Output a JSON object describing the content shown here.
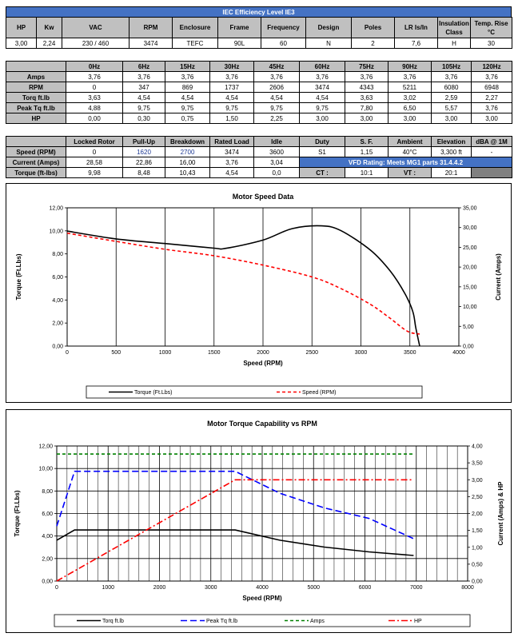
{
  "title": "IEC Efficiency Level IE3",
  "summary": {
    "headers": [
      "HP",
      "Kw",
      "VAC",
      "RPM",
      "Enclosure",
      "Frame",
      "Frequency",
      "Design",
      "Poles",
      "LR Is/In",
      "Insulation Class",
      "Temp. Rise °C"
    ],
    "values": [
      "3,00",
      "2,24",
      "230 / 460",
      "3474",
      "TEFC",
      "90L",
      "60",
      "N",
      "2",
      "7,6",
      "H",
      "30"
    ]
  },
  "freq": {
    "headers": [
      "0Hz",
      "6Hz",
      "15Hz",
      "30Hz",
      "45Hz",
      "60Hz",
      "75Hz",
      "90Hz",
      "105Hz",
      "120Hz"
    ],
    "rows": [
      {
        "label": "Amps",
        "values": [
          "3,76",
          "3,76",
          "3,76",
          "3,76",
          "3,76",
          "3,76",
          "3,76",
          "3,76",
          "3,76",
          "3,76"
        ]
      },
      {
        "label": "RPM",
        "values": [
          "0",
          "347",
          "869",
          "1737",
          "2606",
          "3474",
          "4343",
          "5211",
          "6080",
          "6948"
        ]
      },
      {
        "label": "Torq ft.lb",
        "values": [
          "3,63",
          "4,54",
          "4,54",
          "4,54",
          "4,54",
          "4,54",
          "3,63",
          "3,02",
          "2,59",
          "2,27"
        ]
      },
      {
        "label": "Peak Tq ft.lb",
        "values": [
          "4,88",
          "9,75",
          "9,75",
          "9,75",
          "9,75",
          "9,75",
          "7,80",
          "6,50",
          "5,57",
          "3,76"
        ]
      },
      {
        "label": "HP",
        "values": [
          "0,00",
          "0,30",
          "0,75",
          "1,50",
          "2,25",
          "3,00",
          "3,00",
          "3,00",
          "3,00",
          "3,00"
        ]
      }
    ]
  },
  "perf": {
    "headers": [
      "Locked Rotor",
      "Pull-Up",
      "Breakdown",
      "Rated Load",
      "Idle",
      "Duty",
      "S. F.",
      "Ambient",
      "Elevation",
      "dBA @ 1M"
    ],
    "rows": [
      {
        "label": "Speed (RPM)",
        "values": [
          "0",
          "1620",
          "2700",
          "3474",
          "3600"
        ],
        "extra": [
          "S1",
          "1,15",
          "40°C",
          "3,300 ft",
          "-"
        ]
      },
      {
        "label": "Current (Amps)",
        "values": [
          "28,58",
          "22,86",
          "16,00",
          "3,76",
          "3,04"
        ],
        "vfd": "VFD Rating: Meets MG1 parts 31.4.4.2"
      },
      {
        "label": "Torque (ft-lbs)",
        "values": [
          "9,98",
          "8,48",
          "10,43",
          "4,54",
          "0,0"
        ],
        "ct_label": "CT :",
        "ct_value": "10:1",
        "vt_label": "VT :",
        "vt_value": "20:1"
      }
    ]
  },
  "chart_data": [
    {
      "type": "line",
      "title": "Motor Speed Data",
      "xlabel": "Speed (RPM)",
      "ylabel": "Torque (Ft.Lbs)",
      "y2label": "Current (Amps)",
      "xlim": [
        0,
        4000
      ],
      "ylim": [
        0,
        12
      ],
      "y2lim": [
        0,
        35
      ],
      "xticks": [
        "0",
        "500",
        "1000",
        "1500",
        "2000",
        "2500",
        "3000",
        "3500",
        "4000"
      ],
      "yticks": [
        "0,00",
        "2,00",
        "4,00",
        "6,00",
        "8,00",
        "10,00",
        "12,00"
      ],
      "y2ticks": [
        "0,00",
        "5,00",
        "10,00",
        "15,00",
        "20,00",
        "25,00",
        "30,00",
        "35,00"
      ],
      "grid": "vertical",
      "legend": "bottom",
      "series": [
        {
          "name": "Torque (Ft.Lbs)",
          "axis": "left",
          "color": "#000000",
          "dash": "solid",
          "smooth": true,
          "x": [
            0,
            500,
            1000,
            1500,
            1620,
            2000,
            2300,
            2600,
            2800,
            3100,
            3300,
            3450,
            3530,
            3560,
            3600
          ],
          "y": [
            9.98,
            9.3,
            8.9,
            8.5,
            8.48,
            9.2,
            10.2,
            10.43,
            10.0,
            8.3,
            6.5,
            4.54,
            3.0,
            1.6,
            0.0
          ]
        },
        {
          "name": "Speed (RPM)",
          "axis": "right",
          "color": "#ff0000",
          "dash": "dashed",
          "smooth": true,
          "x": [
            0,
            500,
            1000,
            1500,
            2000,
            2500,
            2800,
            3100,
            3300,
            3474,
            3600
          ],
          "y": [
            28.58,
            26.5,
            24.5,
            22.86,
            20.5,
            17.5,
            14.5,
            10.5,
            7.0,
            3.76,
            3.04
          ]
        }
      ]
    },
    {
      "type": "line",
      "title": "Motor Torque Capability vs RPM",
      "xlabel": "Speed (RPM)",
      "ylabel": "Torque (Ft.Lbs)",
      "y2label": "Current (Amps) & HP",
      "xlim": [
        0,
        8000
      ],
      "ylim": [
        0,
        12
      ],
      "y2lim": [
        0,
        4
      ],
      "xticks": [
        "0",
        "1000",
        "2000",
        "3000",
        "4000",
        "5000",
        "6000",
        "7000",
        "8000"
      ],
      "yticks": [
        "0,00",
        "2,00",
        "4,00",
        "6,00",
        "8,00",
        "10,00",
        "12,00"
      ],
      "y2ticks": [
        "0,00",
        "0,50",
        "1,00",
        "1,50",
        "2,00",
        "2,50",
        "3,00",
        "3,50",
        "4,00"
      ],
      "grid": "both",
      "legend": "bottom",
      "series": [
        {
          "name": "Torq ft.lb",
          "axis": "left",
          "color": "#000000",
          "dash": "solid",
          "x": [
            0,
            347,
            869,
            1737,
            2606,
            3474,
            4343,
            5211,
            6080,
            6948
          ],
          "y": [
            3.63,
            4.54,
            4.54,
            4.54,
            4.54,
            4.54,
            3.63,
            3.02,
            2.59,
            2.27
          ]
        },
        {
          "name": "Peak Tq ft.lb",
          "axis": "left",
          "color": "#0000ff",
          "dash": "longdash",
          "x": [
            0,
            347,
            869,
            1737,
            2606,
            3474,
            4343,
            5211,
            6080,
            6948
          ],
          "y": [
            4.88,
            9.75,
            9.75,
            9.75,
            9.75,
            9.75,
            7.8,
            6.5,
            5.57,
            3.76
          ]
        },
        {
          "name": "Amps",
          "axis": "right",
          "color": "#008000",
          "dash": "dashed",
          "x": [
            0,
            347,
            869,
            1737,
            2606,
            3474,
            4343,
            5211,
            6080,
            6948
          ],
          "y": [
            3.76,
            3.76,
            3.76,
            3.76,
            3.76,
            3.76,
            3.76,
            3.76,
            3.76,
            3.76
          ]
        },
        {
          "name": "HP",
          "axis": "right",
          "color": "#ff0000",
          "dash": "dashdot",
          "x": [
            0,
            347,
            869,
            1737,
            2606,
            3474,
            4343,
            5211,
            6080,
            6948
          ],
          "y": [
            0.0,
            0.3,
            0.75,
            1.5,
            2.25,
            3.0,
            3.0,
            3.0,
            3.0,
            3.0
          ]
        }
      ]
    }
  ]
}
